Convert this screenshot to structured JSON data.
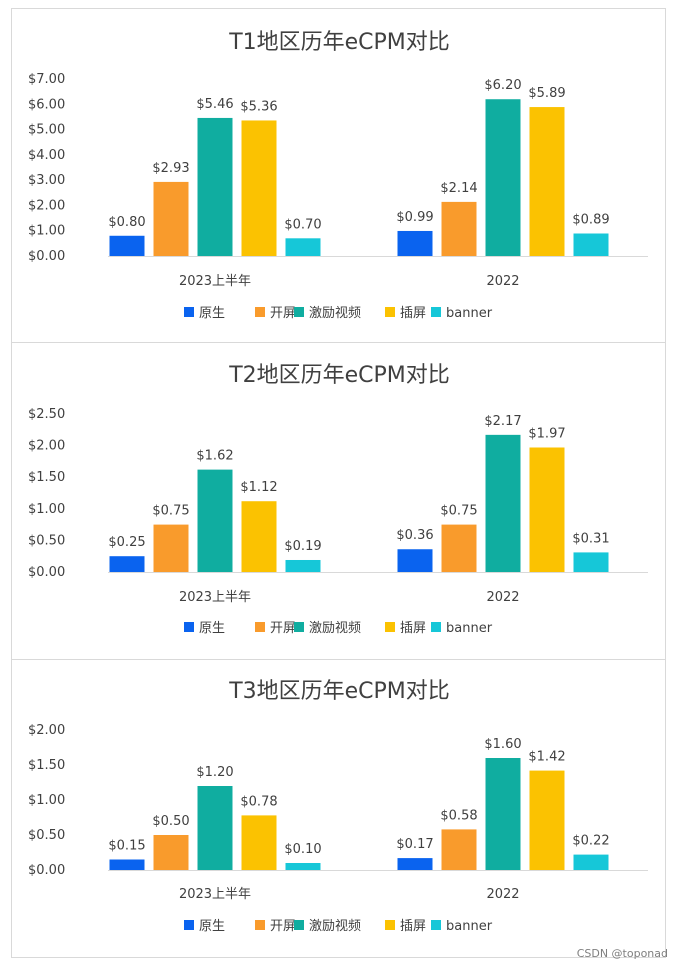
{
  "chart_data": [
    {
      "type": "bar",
      "title": "T1地区历年eCPM对比",
      "categories": [
        "2023上半年",
        "2022"
      ],
      "ylim": [
        0,
        7
      ],
      "yticks": [
        "$0.00",
        "$1.00",
        "$2.00",
        "$3.00",
        "$4.00",
        "$5.00",
        "$6.00",
        "$7.00"
      ],
      "ytick_values": [
        0,
        1,
        2,
        3,
        4,
        5,
        6,
        7
      ],
      "legend_position": "bottom",
      "grid": false,
      "series": [
        {
          "name": "原生",
          "color": "#0a63ef",
          "values": [
            0.8,
            0.99
          ],
          "labels": [
            "$0.80",
            "$0.99"
          ]
        },
        {
          "name": "开屏",
          "color": "#f99b2c",
          "values": [
            2.93,
            2.14
          ],
          "labels": [
            "$2.93",
            "$2.14"
          ]
        },
        {
          "name": "激励视频",
          "color": "#10ada0",
          "values": [
            5.46,
            6.2
          ],
          "labels": [
            "$5.46",
            "$6.20"
          ]
        },
        {
          "name": "插屏",
          "color": "#fbc201",
          "values": [
            5.36,
            5.89
          ],
          "labels": [
            "$5.36",
            "$5.89"
          ]
        },
        {
          "name": "banner",
          "color": "#16c7d8",
          "values": [
            0.7,
            0.89
          ],
          "labels": [
            "$0.70",
            "$0.89"
          ]
        }
      ]
    },
    {
      "type": "bar",
      "title": "T2地区历年eCPM对比",
      "categories": [
        "2023上半年",
        "2022"
      ],
      "ylim": [
        0,
        2.5
      ],
      "yticks": [
        "$0.00",
        "$0.50",
        "$1.00",
        "$1.50",
        "$2.00",
        "$2.50"
      ],
      "ytick_values": [
        0,
        0.5,
        1,
        1.5,
        2,
        2.5
      ],
      "legend_position": "bottom",
      "grid": false,
      "series": [
        {
          "name": "原生",
          "color": "#0a63ef",
          "values": [
            0.25,
            0.36
          ],
          "labels": [
            "$0.25",
            "$0.36"
          ]
        },
        {
          "name": "开屏",
          "color": "#f99b2c",
          "values": [
            0.75,
            0.75
          ],
          "labels": [
            "$0.75",
            "$0.75"
          ]
        },
        {
          "name": "激励视频",
          "color": "#10ada0",
          "values": [
            1.62,
            2.17
          ],
          "labels": [
            "$1.62",
            "$2.17"
          ]
        },
        {
          "name": "插屏",
          "color": "#fbc201",
          "values": [
            1.12,
            1.97
          ],
          "labels": [
            "$1.12",
            "$1.97"
          ]
        },
        {
          "name": "banner",
          "color": "#16c7d8",
          "values": [
            0.19,
            0.31
          ],
          "labels": [
            "$0.19",
            "$0.31"
          ]
        }
      ]
    },
    {
      "type": "bar",
      "title": "T3地区历年eCPM对比",
      "categories": [
        "2023上半年",
        "2022"
      ],
      "ylim": [
        0,
        2
      ],
      "yticks": [
        "$0.00",
        "$0.50",
        "$1.00",
        "$1.50",
        "$2.00"
      ],
      "ytick_values": [
        0,
        0.5,
        1,
        1.5,
        2
      ],
      "legend_position": "bottom",
      "grid": false,
      "series": [
        {
          "name": "原生",
          "color": "#0a63ef",
          "values": [
            0.15,
            0.17
          ],
          "labels": [
            "$0.15",
            "$0.17"
          ]
        },
        {
          "name": "开屏",
          "color": "#f99b2c",
          "values": [
            0.5,
            0.58
          ],
          "labels": [
            "$0.50",
            "$0.58"
          ]
        },
        {
          "name": "激励视频",
          "color": "#10ada0",
          "values": [
            1.2,
            1.6
          ],
          "labels": [
            "$1.20",
            "$1.60"
          ]
        },
        {
          "name": "插屏",
          "color": "#fbc201",
          "values": [
            0.78,
            1.42
          ],
          "labels": [
            "$0.78",
            "$1.42"
          ]
        },
        {
          "name": "banner",
          "color": "#16c7d8",
          "values": [
            0.1,
            0.22
          ],
          "labels": [
            "$0.10",
            "$0.22"
          ]
        }
      ]
    }
  ],
  "watermark": "CSDN @toponad"
}
